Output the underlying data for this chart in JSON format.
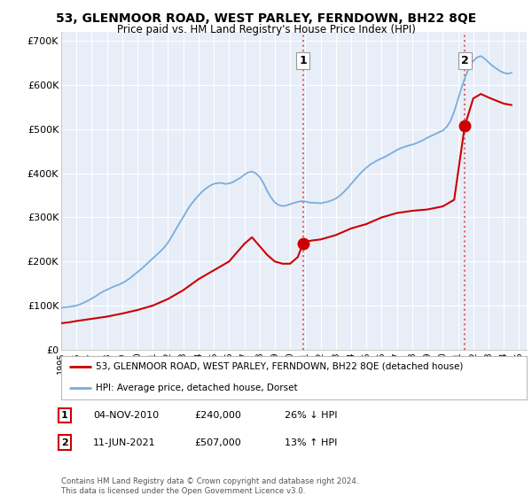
{
  "title": "53, GLENMOOR ROAD, WEST PARLEY, FERNDOWN, BH22 8QE",
  "subtitle": "Price paid vs. HM Land Registry's House Price Index (HPI)",
  "background_color": "#ffffff",
  "plot_bg_color": "#e8eef8",
  "ylim": [
    0,
    720000
  ],
  "yticks": [
    0,
    100000,
    200000,
    300000,
    400000,
    500000,
    600000,
    700000
  ],
  "ytick_labels": [
    "£0",
    "£100K",
    "£200K",
    "£300K",
    "£400K",
    "£500K",
    "£600K",
    "£700K"
  ],
  "xlim_start": 1995.0,
  "xlim_end": 2025.5,
  "sale1_x": 2010.84,
  "sale1_y": 240000,
  "sale1_label": "1",
  "sale2_x": 2021.44,
  "sale2_y": 507000,
  "sale2_label": "2",
  "sale1_date": "04-NOV-2010",
  "sale1_price": "£240,000",
  "sale1_hpi": "26% ↓ HPI",
  "sale2_date": "11-JUN-2021",
  "sale2_price": "£507,000",
  "sale2_hpi": "13% ↑ HPI",
  "legend_line1": "53, GLENMOOR ROAD, WEST PARLEY, FERNDOWN, BH22 8QE (detached house)",
  "legend_line2": "HPI: Average price, detached house, Dorset",
  "footer": "Contains HM Land Registry data © Crown copyright and database right 2024.\nThis data is licensed under the Open Government Licence v3.0.",
  "hpi_color": "#7aaddd",
  "sale_color": "#cc0000",
  "vline_color": "#dd6666",
  "hpi_years": [
    1995,
    1995.25,
    1995.5,
    1995.75,
    1996,
    1996.25,
    1996.5,
    1996.75,
    1997,
    1997.25,
    1997.5,
    1997.75,
    1998,
    1998.25,
    1998.5,
    1998.75,
    1999,
    1999.25,
    1999.5,
    1999.75,
    2000,
    2000.25,
    2000.5,
    2000.75,
    2001,
    2001.25,
    2001.5,
    2001.75,
    2002,
    2002.25,
    2002.5,
    2002.75,
    2003,
    2003.25,
    2003.5,
    2003.75,
    2004,
    2004.25,
    2004.5,
    2004.75,
    2005,
    2005.25,
    2005.5,
    2005.75,
    2006,
    2006.25,
    2006.5,
    2006.75,
    2007,
    2007.25,
    2007.5,
    2007.75,
    2008,
    2008.25,
    2008.5,
    2008.75,
    2009,
    2009.25,
    2009.5,
    2009.75,
    2010,
    2010.25,
    2010.5,
    2010.75,
    2011,
    2011.25,
    2011.5,
    2011.75,
    2012,
    2012.25,
    2012.5,
    2012.75,
    2013,
    2013.25,
    2013.5,
    2013.75,
    2014,
    2014.25,
    2014.5,
    2014.75,
    2015,
    2015.25,
    2015.5,
    2015.75,
    2016,
    2016.25,
    2016.5,
    2016.75,
    2017,
    2017.25,
    2017.5,
    2017.75,
    2018,
    2018.25,
    2018.5,
    2018.75,
    2019,
    2019.25,
    2019.5,
    2019.75,
    2020,
    2020.25,
    2020.5,
    2020.75,
    2021,
    2021.25,
    2021.5,
    2021.75,
    2022,
    2022.25,
    2022.5,
    2022.75,
    2023,
    2023.25,
    2023.5,
    2023.75,
    2024,
    2024.25,
    2024.5
  ],
  "hpi_values": [
    95000,
    96000,
    97000,
    98500,
    100000,
    103000,
    107000,
    111000,
    116000,
    121000,
    127000,
    132000,
    136000,
    140000,
    144000,
    147000,
    151000,
    156000,
    162000,
    169000,
    176000,
    183000,
    191000,
    199000,
    207000,
    215000,
    223000,
    232000,
    243000,
    257000,
    272000,
    287000,
    301000,
    316000,
    329000,
    340000,
    350000,
    359000,
    366000,
    372000,
    376000,
    378000,
    378000,
    376000,
    377000,
    380000,
    385000,
    390000,
    397000,
    402000,
    404000,
    400000,
    392000,
    378000,
    360000,
    345000,
    334000,
    328000,
    326000,
    327000,
    330000,
    333000,
    335000,
    337000,
    336000,
    334000,
    333000,
    333000,
    332000,
    334000,
    336000,
    339000,
    343000,
    349000,
    357000,
    366000,
    376000,
    386000,
    396000,
    405000,
    413000,
    420000,
    425000,
    430000,
    434000,
    438000,
    443000,
    448000,
    453000,
    457000,
    460000,
    463000,
    465000,
    468000,
    472000,
    476000,
    481000,
    485000,
    489000,
    493000,
    497000,
    505000,
    518000,
    540000,
    568000,
    596000,
    621000,
    641000,
    655000,
    663000,
    666000,
    660000,
    652000,
    644000,
    638000,
    632000,
    628000,
    626000,
    628000
  ],
  "sale_years": [
    1995.0,
    1995.5,
    1996.0,
    1997.0,
    1998.0,
    1999.0,
    2000.0,
    2001.0,
    2002.0,
    2003.0,
    2004.0,
    2005.0,
    2006.0,
    2007.0,
    2007.5,
    2008.0,
    2008.5,
    2009.0,
    2009.5,
    2010.0,
    2010.5,
    2010.84,
    2011.0,
    2011.5,
    2012.0,
    2013.0,
    2014.0,
    2015.0,
    2016.0,
    2017.0,
    2018.0,
    2019.0,
    2020.0,
    2020.75,
    2021.44,
    2022.0,
    2022.5,
    2023.0,
    2023.5,
    2024.0,
    2024.5
  ],
  "sale_values": [
    60000,
    62000,
    65000,
    70000,
    75000,
    82000,
    90000,
    100000,
    115000,
    135000,
    160000,
    180000,
    200000,
    240000,
    255000,
    235000,
    215000,
    200000,
    195000,
    195000,
    210000,
    240000,
    245000,
    248000,
    250000,
    260000,
    275000,
    285000,
    300000,
    310000,
    315000,
    318000,
    325000,
    340000,
    507000,
    570000,
    580000,
    572000,
    565000,
    558000,
    555000
  ]
}
